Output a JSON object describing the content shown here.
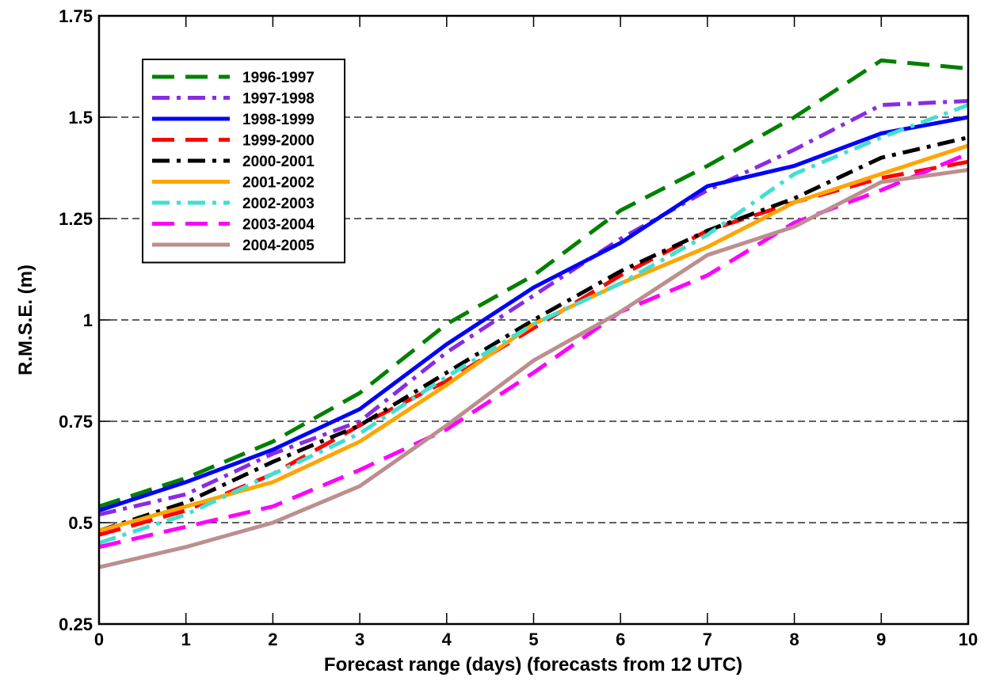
{
  "chart_data": {
    "type": "line",
    "xlabel": "Forecast range (days) (forecasts from 12 UTC)",
    "ylabel": "R.M.S.E. (m)",
    "x": [
      0,
      1,
      2,
      3,
      4,
      5,
      6,
      7,
      8,
      9,
      10
    ],
    "xlim": [
      0,
      10
    ],
    "xticks": [
      0,
      1,
      2,
      3,
      4,
      5,
      6,
      7,
      8,
      9,
      10
    ],
    "ylim": [
      0.25,
      1.75
    ],
    "yticks": [
      0.25,
      0.5,
      0.75,
      1,
      1.25,
      1.5,
      1.75
    ],
    "grid": true,
    "legend": "upper left",
    "series": [
      {
        "name": "1996-1997",
        "color": "#008000",
        "dash": "dash",
        "values": [
          0.54,
          0.61,
          0.7,
          0.82,
          0.99,
          1.11,
          1.27,
          1.38,
          1.5,
          1.64,
          1.62
        ]
      },
      {
        "name": "1997-1998",
        "color": "#8a2be2",
        "dash": "dashdot",
        "values": [
          0.52,
          0.57,
          0.67,
          0.75,
          0.92,
          1.06,
          1.2,
          1.32,
          1.42,
          1.53,
          1.54
        ]
      },
      {
        "name": "1998-1999",
        "color": "#0000ff",
        "dash": "solid",
        "values": [
          0.53,
          0.6,
          0.68,
          0.78,
          0.94,
          1.08,
          1.19,
          1.33,
          1.38,
          1.46,
          1.5
        ]
      },
      {
        "name": "1999-2000",
        "color": "#ff0000",
        "dash": "dash",
        "values": [
          0.47,
          0.53,
          0.62,
          0.74,
          0.85,
          0.98,
          1.11,
          1.22,
          1.29,
          1.35,
          1.39
        ]
      },
      {
        "name": "2000-2001",
        "color": "#000000",
        "dash": "dashdot",
        "values": [
          0.48,
          0.55,
          0.65,
          0.74,
          0.87,
          1.0,
          1.12,
          1.22,
          1.3,
          1.4,
          1.45
        ]
      },
      {
        "name": "2001-2002",
        "color": "#ffa500",
        "dash": "solid",
        "values": [
          0.48,
          0.54,
          0.6,
          0.7,
          0.84,
          0.99,
          1.09,
          1.18,
          1.29,
          1.36,
          1.43
        ]
      },
      {
        "name": "2002-2003",
        "color": "#40e0d0",
        "dash": "dashdot",
        "values": [
          0.45,
          0.52,
          0.62,
          0.72,
          0.86,
          0.99,
          1.09,
          1.21,
          1.36,
          1.45,
          1.53
        ]
      },
      {
        "name": "2003-2004",
        "color": "#ff00ff",
        "dash": "dash",
        "values": [
          0.44,
          0.49,
          0.54,
          0.63,
          0.73,
          0.87,
          1.02,
          1.11,
          1.24,
          1.32,
          1.41
        ]
      },
      {
        "name": "2004-2005",
        "color": "#bc8f8f",
        "dash": "solid",
        "values": [
          0.39,
          0.44,
          0.5,
          0.59,
          0.74,
          0.9,
          1.02,
          1.16,
          1.23,
          1.34,
          1.37
        ]
      }
    ]
  }
}
